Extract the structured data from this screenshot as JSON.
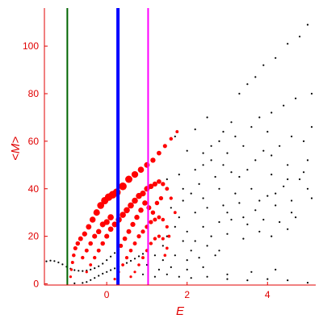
{
  "chart_data": {
    "type": "scatter",
    "title": "",
    "xlabel": "E",
    "ylabel": "<M>",
    "xlim": [
      -1.55,
      5.2
    ],
    "ylim": [
      -0.5,
      116
    ],
    "xticks": [
      0,
      2,
      4
    ],
    "yticks": [
      0,
      20,
      40,
      60,
      80,
      100
    ],
    "grid": false,
    "axis_color": "#e00000",
    "vertical_lines": [
      {
        "x": -0.98,
        "color": "#006400"
      },
      {
        "x": 0.28,
        "color": "#0000ff"
      },
      {
        "x": 1.03,
        "color": "#ff00ff"
      }
    ],
    "series": [
      {
        "color": "#000000",
        "points": [
          [
            -1.5,
            9.5
          ],
          [
            -1.4,
            9.8
          ],
          [
            -1.3,
            9.6
          ],
          [
            -1.2,
            9.0
          ],
          [
            -1.1,
            8.2
          ],
          [
            -1.0,
            7.2
          ],
          [
            -0.9,
            6.4
          ],
          [
            -0.8,
            5.8
          ],
          [
            -0.7,
            5.5
          ],
          [
            -0.6,
            5.4
          ],
          [
            -0.5,
            5.6
          ],
          [
            -0.4,
            6.0
          ],
          [
            -0.3,
            6.6
          ],
          [
            -0.2,
            7.4
          ],
          [
            -0.1,
            8.5
          ],
          [
            0.0,
            10.0
          ],
          [
            0.1,
            11.5
          ],
          [
            0.2,
            13.0
          ],
          [
            0.3,
            14.5
          ],
          [
            -0.8,
            0.2
          ],
          [
            -0.6,
            0.4
          ],
          [
            -0.5,
            0.8
          ],
          [
            -0.4,
            1.6
          ],
          [
            -0.3,
            2.5
          ],
          [
            -0.2,
            3.4
          ],
          [
            -0.1,
            4.3
          ],
          [
            0.0,
            5.0
          ],
          [
            0.1,
            5.8
          ],
          [
            0.2,
            6.5
          ],
          [
            0.3,
            7.2
          ],
          [
            0.4,
            8.0
          ],
          [
            0.5,
            8.8
          ],
          [
            0.6,
            9.7
          ],
          [
            0.7,
            10.6
          ],
          [
            0.8,
            11.6
          ],
          [
            0.9,
            12.6
          ],
          [
            3.3,
            80
          ],
          [
            3.5,
            84
          ],
          [
            3.7,
            87
          ],
          [
            3.9,
            92
          ],
          [
            4.2,
            95
          ],
          [
            4.5,
            101
          ],
          [
            4.8,
            104
          ],
          [
            5.0,
            109
          ],
          [
            3.8,
            70
          ],
          [
            4.1,
            72
          ],
          [
            4.4,
            75
          ],
          [
            4.7,
            78
          ],
          [
            5.1,
            80
          ],
          [
            3.1,
            68
          ],
          [
            2.9,
            64
          ],
          [
            2.4,
            55
          ],
          [
            2.8,
            60
          ],
          [
            3.2,
            62
          ],
          [
            3.6,
            66
          ],
          [
            4.0,
            64
          ],
          [
            4.6,
            62
          ],
          [
            5.1,
            66
          ],
          [
            2.2,
            48
          ],
          [
            2.6,
            52
          ],
          [
            3.0,
            55
          ],
          [
            3.4,
            58
          ],
          [
            3.9,
            56
          ],
          [
            4.3,
            58
          ],
          [
            4.9,
            60
          ],
          [
            1.9,
            40
          ],
          [
            2.3,
            42
          ],
          [
            2.7,
            45
          ],
          [
            3.1,
            47
          ],
          [
            3.5,
            48
          ],
          [
            4.1,
            46
          ],
          [
            4.5,
            50
          ],
          [
            5.0,
            52
          ],
          [
            1.6,
            32
          ],
          [
            1.9,
            35
          ],
          [
            2.1,
            38
          ],
          [
            2.4,
            36
          ],
          [
            2.8,
            40
          ],
          [
            3.2,
            38
          ],
          [
            3.6,
            40
          ],
          [
            4.0,
            37
          ],
          [
            4.4,
            41
          ],
          [
            4.8,
            44
          ],
          [
            1.8,
            28
          ],
          [
            2.2,
            30
          ],
          [
            2.5,
            32
          ],
          [
            2.9,
            33
          ],
          [
            3.3,
            34
          ],
          [
            3.7,
            31
          ],
          [
            4.2,
            33
          ],
          [
            4.6,
            30
          ],
          [
            5.1,
            36
          ],
          [
            2.0,
            22
          ],
          [
            2.4,
            24
          ],
          [
            2.8,
            26
          ],
          [
            3.1,
            27
          ],
          [
            3.5,
            25
          ],
          [
            3.9,
            27
          ],
          [
            4.3,
            26
          ],
          [
            4.7,
            28
          ],
          [
            2.2,
            18
          ],
          [
            2.6,
            20
          ],
          [
            3.0,
            21
          ],
          [
            3.4,
            19
          ],
          [
            3.8,
            22
          ],
          [
            4.1,
            20
          ],
          [
            4.5,
            23
          ],
          [
            1.5,
            20
          ],
          [
            1.7,
            24
          ],
          [
            1.4,
            16
          ],
          [
            1.9,
            18
          ],
          [
            2.1,
            14
          ],
          [
            2.5,
            16
          ],
          [
            2.8,
            14
          ],
          [
            1.2,
            12
          ],
          [
            1.4,
            10
          ],
          [
            1.7,
            12
          ],
          [
            2.0,
            10
          ],
          [
            2.3,
            11
          ],
          [
            2.7,
            12
          ],
          [
            1.0,
            8
          ],
          [
            1.3,
            6
          ],
          [
            1.6,
            7
          ],
          [
            2.0,
            6
          ],
          [
            2.4,
            7
          ],
          [
            0.9,
            4
          ],
          [
            1.2,
            3
          ],
          [
            1.5,
            4
          ],
          [
            1.8,
            3
          ],
          [
            2.1,
            2.5
          ],
          [
            2.5,
            3
          ],
          [
            3.0,
            4
          ],
          [
            3.6,
            5
          ],
          [
            4.2,
            6
          ],
          [
            3.0,
            2
          ],
          [
            3.5,
            1.5
          ],
          [
            4.0,
            2
          ],
          [
            4.5,
            1.5
          ],
          [
            5.0,
            0.5
          ],
          [
            1.5,
            44
          ],
          [
            1.8,
            46
          ],
          [
            2.4,
            50
          ],
          [
            2.0,
            56
          ],
          [
            2.6,
            58
          ],
          [
            1.7,
            62
          ],
          [
            2.2,
            65
          ],
          [
            2.5,
            70
          ],
          [
            2.9,
            50
          ],
          [
            3.3,
            45
          ],
          [
            3.7,
            52
          ],
          [
            4.1,
            54
          ],
          [
            4.5,
            44
          ],
          [
            4.9,
            47
          ],
          [
            3.0,
            30
          ],
          [
            3.4,
            28
          ],
          [
            3.8,
            35
          ],
          [
            4.2,
            38
          ],
          [
            4.6,
            35
          ],
          [
            5.0,
            40
          ]
        ]
      },
      {
        "color": "#ff0000",
        "points": [
          [
            -0.9,
            3
          ],
          [
            -0.88,
            6
          ],
          [
            -0.85,
            9
          ],
          [
            -0.82,
            12
          ],
          [
            -0.78,
            15
          ],
          [
            -0.72,
            17
          ],
          [
            -0.65,
            19
          ],
          [
            -0.55,
            21
          ],
          [
            -0.45,
            24
          ],
          [
            -0.35,
            27
          ],
          [
            -0.25,
            30
          ],
          [
            -0.15,
            33
          ],
          [
            -0.05,
            35
          ],
          [
            0.05,
            36.5
          ],
          [
            0.15,
            37.5
          ],
          [
            0.25,
            38.5
          ],
          [
            0.4,
            41
          ],
          [
            0.55,
            44
          ],
          [
            0.7,
            46
          ],
          [
            0.85,
            48
          ],
          [
            1.0,
            50
          ],
          [
            1.15,
            52
          ],
          [
            1.3,
            55
          ],
          [
            1.45,
            58
          ],
          [
            1.6,
            61
          ],
          [
            1.75,
            64
          ],
          [
            -0.5,
            5
          ],
          [
            -0.4,
            8
          ],
          [
            -0.3,
            11
          ],
          [
            -0.2,
            14
          ],
          [
            -0.1,
            17
          ],
          [
            0.0,
            20
          ],
          [
            0.1,
            23
          ],
          [
            0.2,
            25
          ],
          [
            0.3,
            27
          ],
          [
            0.4,
            29
          ],
          [
            0.5,
            31
          ],
          [
            0.6,
            33
          ],
          [
            0.7,
            35
          ],
          [
            0.8,
            37
          ],
          [
            0.9,
            38
          ],
          [
            1.0,
            40
          ],
          [
            1.1,
            41
          ],
          [
            1.2,
            42
          ],
          [
            1.3,
            43
          ],
          [
            1.4,
            42
          ],
          [
            1.5,
            40
          ],
          [
            1.6,
            36
          ],
          [
            1.7,
            30
          ],
          [
            0.2,
            2
          ],
          [
            0.3,
            5
          ],
          [
            0.4,
            8
          ],
          [
            0.5,
            11
          ],
          [
            0.6,
            14
          ],
          [
            0.7,
            17
          ],
          [
            0.8,
            20
          ],
          [
            0.9,
            22
          ],
          [
            1.0,
            24
          ],
          [
            1.1,
            26
          ],
          [
            1.2,
            27
          ],
          [
            1.3,
            28
          ],
          [
            1.4,
            27
          ],
          [
            1.5,
            24
          ],
          [
            1.55,
            20
          ],
          [
            1.5,
            15
          ],
          [
            1.45,
            12
          ],
          [
            0.6,
            3
          ],
          [
            0.7,
            5
          ],
          [
            0.8,
            8
          ],
          [
            0.9,
            11
          ],
          [
            1.0,
            14
          ],
          [
            1.1,
            17
          ],
          [
            1.2,
            19
          ],
          [
            1.3,
            20
          ],
          [
            1.4,
            19
          ],
          [
            0.35,
            16
          ],
          [
            0.45,
            19
          ],
          [
            0.55,
            22
          ],
          [
            0.65,
            25
          ],
          [
            0.75,
            28
          ],
          [
            0.85,
            31
          ],
          [
            0.95,
            34
          ],
          [
            1.05,
            32
          ],
          [
            1.15,
            30
          ],
          [
            1.25,
            34
          ],
          [
            1.35,
            36
          ],
          [
            -0.6,
            11
          ],
          [
            -0.5,
            14
          ],
          [
            -0.4,
            17
          ],
          [
            -0.3,
            20
          ],
          [
            -0.2,
            22
          ],
          [
            -0.1,
            25
          ],
          [
            0.0,
            26
          ],
          [
            0.1,
            28
          ]
        ]
      }
    ]
  }
}
